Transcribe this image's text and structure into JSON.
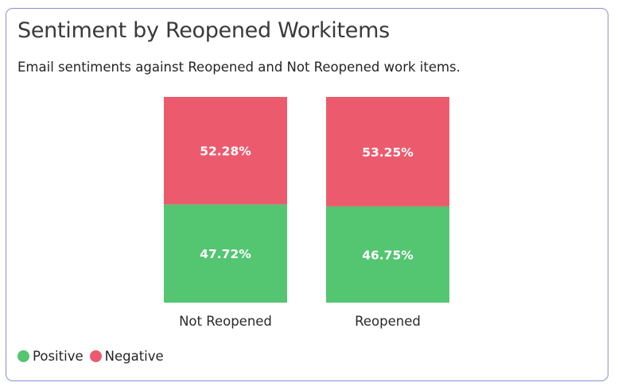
{
  "card": {
    "title": "Sentiment by Reopened Workitems",
    "subtitle": "Email sentiments against Reopened and Not Reopened work items."
  },
  "colors": {
    "positive": "#54c571",
    "negative": "#ec5b6d"
  },
  "chart_data": {
    "type": "bar",
    "stacked": true,
    "title": "Sentiment by Reopened Workitems",
    "subtitle": "Email sentiments against Reopened and Not Reopened work items.",
    "categories": [
      "Not Reopened",
      "Reopened"
    ],
    "series": [
      {
        "name": "Positive",
        "color": "#54c571",
        "values": [
          47.72,
          46.75
        ],
        "labels": [
          "47.72%",
          "46.75%"
        ]
      },
      {
        "name": "Negative",
        "color": "#ec5b6d",
        "values": [
          52.28,
          53.25
        ],
        "labels": [
          "52.28%",
          "53.25%"
        ]
      }
    ],
    "ylim": [
      0,
      100
    ],
    "grid": false,
    "legend": "bottom-left"
  }
}
